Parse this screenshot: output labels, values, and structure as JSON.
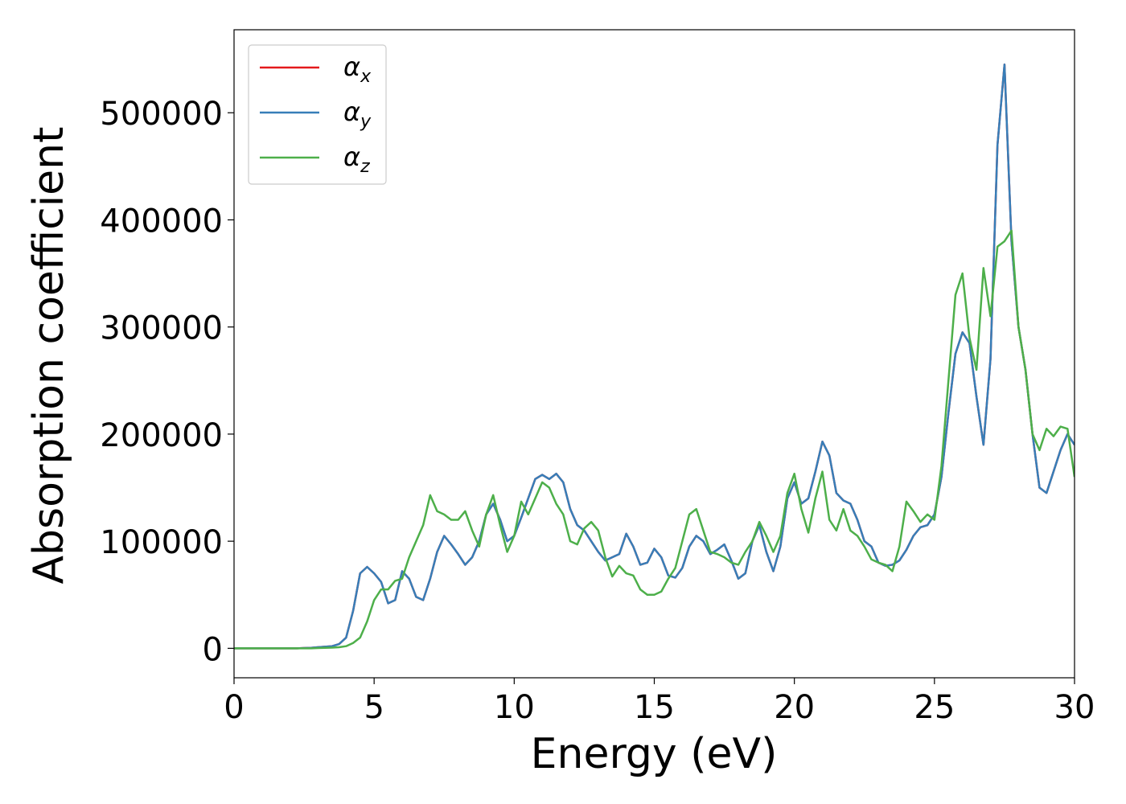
{
  "chart_data": {
    "type": "line",
    "x_label": "Energy (eV)",
    "y_label": "Absorption coefficient",
    "x": [
      0,
      0.25,
      0.5,
      0.75,
      1,
      1.25,
      1.5,
      1.75,
      2,
      2.25,
      2.5,
      2.75,
      3,
      3.25,
      3.5,
      3.75,
      4,
      4.25,
      4.5,
      4.75,
      5,
      5.25,
      5.5,
      5.75,
      6,
      6.25,
      6.5,
      6.75,
      7,
      7.25,
      7.5,
      7.75,
      8,
      8.25,
      8.5,
      8.75,
      9,
      9.25,
      9.5,
      9.75,
      10,
      10.25,
      10.5,
      10.75,
      11,
      11.25,
      11.5,
      11.75,
      12,
      12.25,
      12.5,
      12.75,
      13,
      13.25,
      13.5,
      13.75,
      14,
      14.25,
      14.5,
      14.75,
      15,
      15.25,
      15.5,
      15.75,
      16,
      16.25,
      16.5,
      16.75,
      17,
      17.25,
      17.5,
      17.75,
      18,
      18.25,
      18.5,
      18.75,
      19,
      19.25,
      19.5,
      19.75,
      20,
      20.25,
      20.5,
      20.75,
      21,
      21.25,
      21.5,
      21.75,
      22,
      22.25,
      22.5,
      22.75,
      23,
      23.25,
      23.5,
      23.75,
      24,
      24.25,
      24.5,
      24.75,
      25,
      25.25,
      25.5,
      25.75,
      26,
      26.25,
      26.5,
      26.75,
      27,
      27.25,
      27.5,
      27.75,
      28,
      28.25,
      28.5,
      28.75,
      29,
      29.25,
      29.5,
      29.75,
      30
    ],
    "series": [
      {
        "name": "αx",
        "color": "#e41a1c",
        "values": [
          0,
          0,
          0,
          0,
          0,
          0,
          0,
          0,
          0,
          0,
          300,
          500,
          1000,
          1500,
          2000,
          4000,
          10000,
          35000,
          70000,
          76000,
          70000,
          62000,
          42000,
          45000,
          72000,
          65000,
          48000,
          45000,
          65000,
          90000,
          105000,
          97000,
          88000,
          78000,
          85000,
          100000,
          125000,
          135000,
          120000,
          100000,
          105000,
          122000,
          140000,
          158000,
          162000,
          158000,
          163000,
          155000,
          130000,
          115000,
          110000,
          100000,
          90000,
          82000,
          85000,
          88000,
          107000,
          95000,
          78000,
          80000,
          93000,
          85000,
          68000,
          66000,
          75000,
          95000,
          105000,
          100000,
          88000,
          92000,
          97000,
          82000,
          65000,
          70000,
          100000,
          115000,
          90000,
          72000,
          95000,
          140000,
          155000,
          135000,
          140000,
          165000,
          193000,
          180000,
          145000,
          138000,
          135000,
          120000,
          100000,
          95000,
          80000,
          77000,
          78000,
          82000,
          92000,
          105000,
          113000,
          115000,
          125000,
          160000,
          220000,
          275000,
          295000,
          285000,
          235000,
          190000,
          270000,
          470000,
          545000,
          380000,
          300000,
          260000,
          200000,
          150000,
          145000,
          165000,
          185000,
          200000,
          190000
        ]
      },
      {
        "name": "αy",
        "color": "#377eb8",
        "values": [
          0,
          0,
          0,
          0,
          0,
          0,
          0,
          0,
          0,
          0,
          300,
          500,
          1000,
          1500,
          2000,
          4000,
          10000,
          35000,
          70000,
          76000,
          70000,
          62000,
          42000,
          45000,
          72000,
          65000,
          48000,
          45000,
          65000,
          90000,
          105000,
          97000,
          88000,
          78000,
          85000,
          100000,
          125000,
          135000,
          120000,
          100000,
          105000,
          122000,
          140000,
          158000,
          162000,
          158000,
          163000,
          155000,
          130000,
          115000,
          110000,
          100000,
          90000,
          82000,
          85000,
          88000,
          107000,
          95000,
          78000,
          80000,
          93000,
          85000,
          68000,
          66000,
          75000,
          95000,
          105000,
          100000,
          88000,
          92000,
          97000,
          82000,
          65000,
          70000,
          100000,
          115000,
          90000,
          72000,
          95000,
          140000,
          155000,
          135000,
          140000,
          165000,
          193000,
          180000,
          145000,
          138000,
          135000,
          120000,
          100000,
          95000,
          80000,
          77000,
          78000,
          82000,
          92000,
          105000,
          113000,
          115000,
          125000,
          160000,
          220000,
          275000,
          295000,
          285000,
          235000,
          190000,
          270000,
          470000,
          545000,
          380000,
          300000,
          260000,
          200000,
          150000,
          145000,
          165000,
          185000,
          200000,
          190000
        ]
      },
      {
        "name": "αz",
        "color": "#4daf4a",
        "values": [
          0,
          0,
          0,
          0,
          0,
          0,
          0,
          0,
          0,
          0,
          0,
          0,
          300,
          500,
          600,
          1000,
          2000,
          5000,
          10000,
          25000,
          45000,
          55000,
          55000,
          63000,
          65000,
          85000,
          100000,
          115000,
          143000,
          128000,
          125000,
          120000,
          120000,
          128000,
          110000,
          95000,
          125000,
          143000,
          115000,
          90000,
          105000,
          137000,
          125000,
          140000,
          155000,
          150000,
          135000,
          125000,
          100000,
          97000,
          112000,
          118000,
          110000,
          85000,
          67000,
          77000,
          70000,
          68000,
          55000,
          50000,
          50000,
          53000,
          65000,
          75000,
          100000,
          125000,
          130000,
          110000,
          90000,
          88000,
          85000,
          80000,
          78000,
          90000,
          100000,
          118000,
          105000,
          90000,
          105000,
          145000,
          163000,
          130000,
          108000,
          140000,
          165000,
          120000,
          110000,
          130000,
          110000,
          105000,
          95000,
          83000,
          80000,
          78000,
          72000,
          95000,
          137000,
          128000,
          118000,
          125000,
          120000,
          170000,
          250000,
          330000,
          350000,
          290000,
          260000,
          355000,
          310000,
          375000,
          380000,
          390000,
          300000,
          260000,
          200000,
          185000,
          205000,
          198000,
          207000,
          205000,
          160000
        ]
      }
    ],
    "xlim": [
      0,
      30
    ],
    "xticks": [
      0,
      5,
      10,
      15,
      20,
      25,
      30
    ],
    "ylim": [
      -27500,
      577500
    ],
    "yticks": [
      0,
      100000,
      200000,
      300000,
      400000,
      500000
    ],
    "legend": "upper left",
    "grid": false
  }
}
